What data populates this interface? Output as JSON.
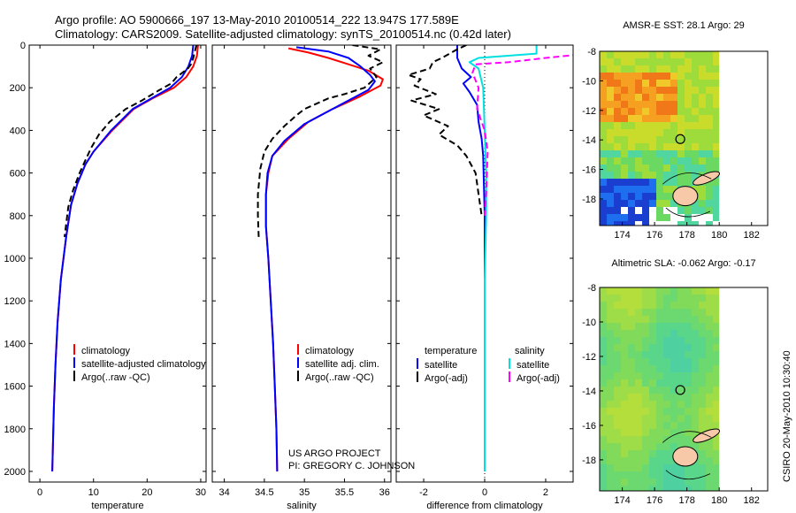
{
  "header": {
    "line1": "Argo profile: AO 5900666_197 13-May-2010 20100514_222 13.947S 177.589E",
    "line2": "Climatology: CARS2009. Satellite-adjusted climatology: synTS_20100514.nc (0.42d later)"
  },
  "credit": {
    "line1": "US ARGO PROJECT",
    "line2": "PI: GREGORY C. JOHNSON"
  },
  "side_stamp": "CSIRO 20-May-2010 10:30:40",
  "colors": {
    "climatology": "#ff0000",
    "satellite": "#0000ff",
    "argo": "#000000",
    "salinity_satellite": "#00e0e0",
    "salinity_argo": "#ff00ff"
  },
  "chart_data": [
    {
      "type": "line",
      "xlabel": "temperature",
      "xlim": [
        -2,
        31
      ],
      "xticks": [
        0,
        10,
        20,
        30
      ],
      "ylim": [
        0,
        2050
      ],
      "yticks": [
        0,
        200,
        400,
        600,
        800,
        1000,
        1200,
        1400,
        1600,
        1800,
        2000
      ],
      "y_reversed": true,
      "legend": [
        "climatology",
        "satellite-adjusted climatology",
        "Argo(..raw -QC)"
      ],
      "series": [
        {
          "name": "climatology",
          "style": "solid",
          "points": [
            [
              29.5,
              0
            ],
            [
              29.3,
              50
            ],
            [
              28.6,
              100
            ],
            [
              27.3,
              150
            ],
            [
              25,
              200
            ],
            [
              21,
              250
            ],
            [
              17.5,
              300
            ],
            [
              13.5,
              400
            ],
            [
              10,
              500
            ],
            [
              8.5,
              560
            ],
            [
              7,
              650
            ],
            [
              5.8,
              750
            ],
            [
              4.9,
              900
            ],
            [
              3.9,
              1100
            ],
            [
              3.3,
              1300
            ],
            [
              2.9,
              1500
            ],
            [
              2.6,
              1700
            ],
            [
              2.4,
              1900
            ],
            [
              2.3,
              2000
            ]
          ]
        },
        {
          "name": "satellite-adjusted climatology",
          "style": "solid",
          "points": [
            [
              28.6,
              0
            ],
            [
              28.4,
              50
            ],
            [
              27.7,
              100
            ],
            [
              26.5,
              150
            ],
            [
              24.3,
              200
            ],
            [
              20.8,
              250
            ],
            [
              17.3,
              300
            ],
            [
              13.3,
              400
            ],
            [
              10,
              500
            ],
            [
              8.5,
              560
            ],
            [
              7,
              650
            ],
            [
              5.8,
              750
            ],
            [
              4.9,
              900
            ],
            [
              3.9,
              1100
            ],
            [
              3.3,
              1300
            ],
            [
              2.9,
              1500
            ],
            [
              2.6,
              1700
            ],
            [
              2.4,
              1900
            ],
            [
              2.3,
              2000
            ]
          ]
        },
        {
          "name": "Argo(..raw -QC)",
          "style": "dashed",
          "points": [
            [
              29.2,
              0
            ],
            [
              28.8,
              40
            ],
            [
              28.6,
              60
            ],
            [
              28.2,
              90
            ],
            [
              27.6,
              110
            ],
            [
              25.5,
              150
            ],
            [
              24.5,
              180
            ],
            [
              22,
              215
            ],
            [
              19,
              260
            ],
            [
              16,
              300
            ],
            [
              13,
              360
            ],
            [
              11,
              420
            ],
            [
              9.6,
              480
            ],
            [
              8.5,
              540
            ],
            [
              7.4,
              600
            ],
            [
              6.2,
              680
            ],
            [
              5.3,
              760
            ],
            [
              4.6,
              900
            ]
          ]
        }
      ]
    },
    {
      "type": "line",
      "xlabel": "salinity",
      "xlim": [
        33.85,
        36.08
      ],
      "xticks": [
        34,
        34.5,
        35,
        35.5,
        36
      ],
      "ylim": [
        0,
        2050
      ],
      "y_reversed": true,
      "legend": [
        "climatology",
        "satellite adj. clim.",
        "Argo(..raw -QC)"
      ],
      "series": [
        {
          "name": "climatology",
          "style": "solid",
          "points": [
            [
              34.8,
              15
            ],
            [
              35.05,
              35
            ],
            [
              35.3,
              60
            ],
            [
              35.55,
              90
            ],
            [
              35.8,
              120
            ],
            [
              35.98,
              160
            ],
            [
              35.95,
              190
            ],
            [
              35.7,
              240
            ],
            [
              35.35,
              300
            ],
            [
              35.05,
              360
            ],
            [
              34.8,
              440
            ],
            [
              34.6,
              520
            ],
            [
              34.55,
              600
            ],
            [
              34.52,
              700
            ],
            [
              34.52,
              850
            ],
            [
              34.55,
              1000
            ],
            [
              34.58,
              1200
            ],
            [
              34.61,
              1400
            ],
            [
              34.63,
              1600
            ],
            [
              34.65,
              1800
            ],
            [
              34.66,
              2000
            ]
          ]
        },
        {
          "name": "satellite adj. clim.",
          "style": "solid",
          "points": [
            [
              34.9,
              10
            ],
            [
              35.3,
              30
            ],
            [
              35.55,
              60
            ],
            [
              35.7,
              100
            ],
            [
              35.82,
              140
            ],
            [
              35.88,
              170
            ],
            [
              35.8,
              210
            ],
            [
              35.6,
              250
            ],
            [
              35.3,
              310
            ],
            [
              35.0,
              370
            ],
            [
              34.75,
              450
            ],
            [
              34.6,
              520
            ],
            [
              34.54,
              600
            ],
            [
              34.52,
              700
            ],
            [
              34.52,
              850
            ],
            [
              34.55,
              1000
            ],
            [
              34.58,
              1200
            ],
            [
              34.61,
              1400
            ],
            [
              34.63,
              1600
            ],
            [
              34.65,
              1800
            ],
            [
              34.66,
              2000
            ]
          ]
        },
        {
          "name": "Argo(..raw -QC)",
          "style": "dashed",
          "points": [
            [
              35.6,
              0
            ],
            [
              35.95,
              20
            ],
            [
              35.8,
              50
            ],
            [
              35.98,
              80
            ],
            [
              35.82,
              110
            ],
            [
              35.9,
              150
            ],
            [
              35.75,
              200
            ],
            [
              35.5,
              230
            ],
            [
              35.3,
              250
            ],
            [
              35.0,
              300
            ],
            [
              34.9,
              330
            ],
            [
              34.75,
              380
            ],
            [
              34.6,
              440
            ],
            [
              34.5,
              500
            ],
            [
              34.45,
              580
            ],
            [
              34.42,
              700
            ],
            [
              34.42,
              800
            ],
            [
              34.43,
              900
            ]
          ]
        }
      ]
    },
    {
      "type": "line",
      "xlabel": "difference from climatology",
      "xlim": [
        -2.9,
        2.9
      ],
      "xticks": [
        -2,
        0,
        2
      ],
      "ylim": [
        0,
        2050
      ],
      "y_reversed": true,
      "legend_groups": [
        {
          "title": "temperature",
          "items": [
            "satellite",
            "Argo(-adj)"
          ]
        },
        {
          "title": "salinity",
          "items": [
            "satellite",
            "Argo(-adj)"
          ]
        }
      ],
      "series": [
        {
          "name": "temperature satellite",
          "style": "solid",
          "points": [
            [
              -0.9,
              0
            ],
            [
              -0.9,
              60
            ],
            [
              -0.75,
              110
            ],
            [
              -0.45,
              150
            ],
            [
              -0.7,
              180
            ],
            [
              -0.5,
              220
            ],
            [
              -0.25,
              280
            ],
            [
              -0.2,
              360
            ],
            [
              -0.1,
              440
            ],
            [
              -0.05,
              520
            ],
            [
              0,
              800
            ],
            [
              0,
              2000
            ]
          ]
        },
        {
          "name": "temperature Argo(-adj)",
          "style": "dashed",
          "points": [
            [
              -0.6,
              0
            ],
            [
              -0.9,
              20
            ],
            [
              -1.4,
              60
            ],
            [
              -1.7,
              80
            ],
            [
              -1.8,
              110
            ],
            [
              -2.5,
              140
            ],
            [
              -2.1,
              160
            ],
            [
              -2.3,
              190
            ],
            [
              -1.6,
              230
            ],
            [
              -2.4,
              260
            ],
            [
              -1.5,
              300
            ],
            [
              -2.0,
              330
            ],
            [
              -1.2,
              380
            ],
            [
              -1.5,
              420
            ],
            [
              -0.9,
              470
            ],
            [
              -0.6,
              520
            ],
            [
              -0.3,
              600
            ],
            [
              -0.2,
              700
            ],
            [
              -0.1,
              800
            ]
          ]
        },
        {
          "name": "salinity satellite",
          "style": "solid",
          "points": [
            [
              1.7,
              0
            ],
            [
              1.7,
              40
            ],
            [
              -0.2,
              60
            ],
            [
              -0.5,
              80
            ],
            [
              -0.2,
              110
            ],
            [
              -0.05,
              200
            ],
            [
              0,
              400
            ],
            [
              0.05,
              600
            ],
            [
              0.05,
              800
            ],
            [
              0,
              1100
            ],
            [
              0,
              2000
            ]
          ]
        },
        {
          "name": "salinity Argo(-adj)",
          "style": "dashed",
          "points": [
            [
              3.4,
              40
            ],
            [
              2.0,
              60
            ],
            [
              0.8,
              80
            ],
            [
              -0.3,
              90
            ],
            [
              -0.4,
              130
            ],
            [
              -0.2,
              200
            ],
            [
              -0.25,
              300
            ],
            [
              0.0,
              400
            ],
            [
              0.1,
              500
            ],
            [
              0.05,
              700
            ],
            [
              0,
              800
            ]
          ]
        }
      ]
    },
    {
      "type": "heatmap",
      "title": "AMSR-E SST: 28.1 Argo: 29",
      "xlim": [
        172.6,
        183
      ],
      "xticks": [
        174,
        176,
        178,
        180,
        182
      ],
      "ylim": [
        -19.8,
        -8
      ],
      "yticks": [
        -8,
        -10,
        -12,
        -14,
        -16,
        -18
      ],
      "marker": [
        177.589,
        -13.947
      ]
    },
    {
      "type": "heatmap",
      "title": "Altimetric SLA: -0.062 Argo: -0.17",
      "xlim": [
        172.6,
        183
      ],
      "xticks": [
        174,
        176,
        178,
        180,
        182
      ],
      "ylim": [
        -19.8,
        -8
      ],
      "yticks": [
        -8,
        -10,
        -12,
        -14,
        -16,
        -18
      ],
      "marker": [
        177.589,
        -13.947
      ]
    }
  ]
}
